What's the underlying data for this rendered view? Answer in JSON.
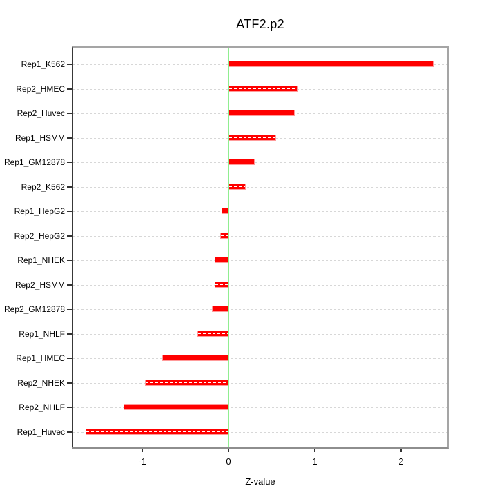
{
  "title": "ATF2.p2",
  "chart_data": {
    "type": "bar",
    "orientation": "horizontal",
    "title": "ATF2.p2",
    "xlabel": "Z-value",
    "ylabel": "",
    "categories": [
      "Rep1_K562",
      "Rep2_HMEC",
      "Rep2_Huvec",
      "Rep1_HSMM",
      "Rep1_GM12878",
      "Rep2_K562",
      "Rep1_HepG2",
      "Rep2_HepG2",
      "Rep1_NHEK",
      "Rep2_HSMM",
      "Rep2_GM12878",
      "Rep1_NHLF",
      "Rep1_HMEC",
      "Rep2_NHEK",
      "Rep2_NHLF",
      "Rep1_Huvec"
    ],
    "values": [
      2.38,
      0.8,
      0.77,
      0.55,
      0.3,
      0.2,
      -0.08,
      -0.1,
      -0.16,
      -0.16,
      -0.19,
      -0.36,
      -0.77,
      -0.97,
      -1.22,
      -1.66
    ],
    "xlim": [
      -1.8,
      2.536
    ],
    "xticks": [
      -1,
      0,
      1,
      2
    ],
    "grid": "dashed-horizontal-per-category",
    "zero_reference_line": 0,
    "legend_position": "none",
    "colors": {
      "bar": "#ff0000",
      "bar_border": "#ff9999",
      "bar_inner_dash": "#ffffff",
      "zero_line": "#90ee90",
      "grid_line": "#d7d7d7",
      "box": "#a5a5a5",
      "axis_left": "#383838",
      "tick": "#333333",
      "text": "#000000",
      "background": "#ffffff"
    }
  }
}
